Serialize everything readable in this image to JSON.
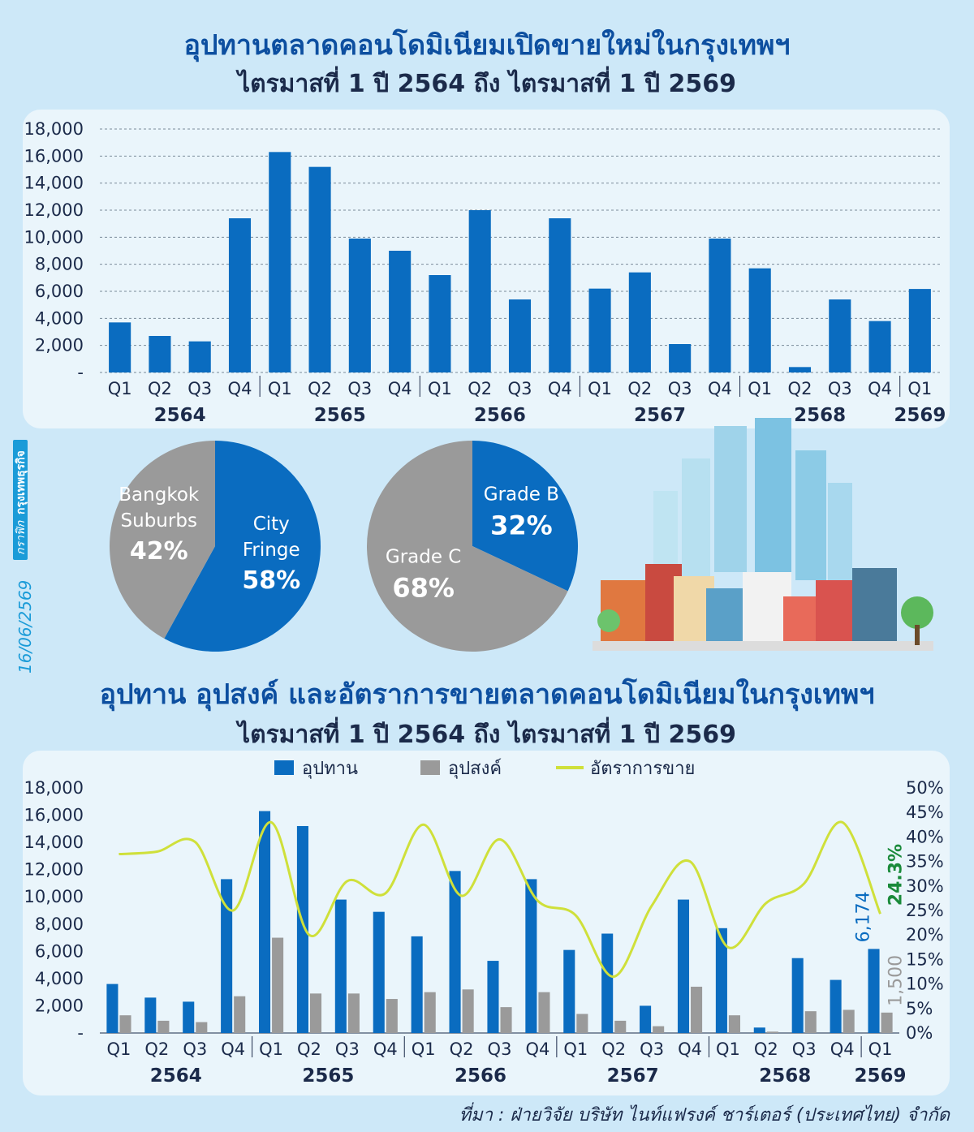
{
  "titles": {
    "top_title": "อุปทานตลาดคอนโดมิเนียมเปิดขายใหม่ในกรุงเทพฯ",
    "top_subtitle": "ไตรมาสที่ 1 ปี 2564 ถึง ไตรมาสที่ 1 ปี 2569",
    "bottom_title": "อุปทาน อุปสงค์ และอัตราการขายตลาดคอนโดมิเนียมในกรุงเทพฯ",
    "bottom_subtitle": "ไตรมาสที่ 1 ปี 2564 ถึง ไตรมาสที่ 1 ปี 2569"
  },
  "side_label": {
    "date": "16/06/2569",
    "prefix": "กราฟิก",
    "brand": "กรุงเทพธุรกิจ"
  },
  "source": "ที่มา : ฝ่ายวิจัย บริษัท ไนท์แฟรงค์ ชาร์เตอร์ (ประเทศไทย) จำกัด",
  "colors": {
    "supply": "#0a6cc0",
    "demand": "#9a9a9a",
    "sales_rate": "#cfe03a",
    "title": "#0d4fa0",
    "annotation_supply": "#0a6cc0",
    "annotation_rate": "#1a8a3a"
  },
  "chart_data": [
    {
      "type": "bar",
      "quarters": [
        "Q1",
        "Q2",
        "Q3",
        "Q4",
        "Q1",
        "Q2",
        "Q3",
        "Q4",
        "Q1",
        "Q2",
        "Q3",
        "Q4",
        "Q1",
        "Q2",
        "Q3",
        "Q4",
        "Q1",
        "Q2",
        "Q3",
        "Q4",
        "Q1"
      ],
      "years": [
        {
          "label": "2564",
          "quarters": 4
        },
        {
          "label": "2565",
          "quarters": 4
        },
        {
          "label": "2566",
          "quarters": 4
        },
        {
          "label": "2567",
          "quarters": 4
        },
        {
          "label": "2568",
          "quarters": 4
        },
        {
          "label": "2569",
          "quarters": 1
        }
      ],
      "values": [
        3700,
        2700,
        2300,
        11400,
        16300,
        15200,
        9900,
        9000,
        7200,
        12000,
        5400,
        11400,
        6200,
        7400,
        2100,
        9900,
        7700,
        400,
        5400,
        3800,
        6174
      ],
      "ylim": [
        0,
        18000
      ],
      "yticks": [
        "-",
        "2,000",
        "4,000",
        "6,000",
        "8,000",
        "10,000",
        "12,000",
        "14,000",
        "16,000",
        "18,000"
      ]
    },
    {
      "type": "pie",
      "slices": [
        {
          "label1": "City",
          "label2": "Fringe",
          "value": 58,
          "text": "58%",
          "color": "#0a6cc0"
        },
        {
          "label1": "Bangkok",
          "label2": "Suburbs",
          "value": 42,
          "text": "42%",
          "color": "#9a9a9a"
        }
      ]
    },
    {
      "type": "pie",
      "slices": [
        {
          "label1": "Grade B",
          "label2": "",
          "value": 32,
          "text": "32%",
          "color": "#0a6cc0"
        },
        {
          "label1": "Grade C",
          "label2": "",
          "value": 68,
          "text": "68%",
          "color": "#9a9a9a"
        }
      ]
    },
    {
      "type": "bar",
      "legend": [
        "อุปทาน",
        "อุปสงค์",
        "อัตราการขาย"
      ],
      "quarters": [
        "Q1",
        "Q2",
        "Q3",
        "Q4",
        "Q1",
        "Q2",
        "Q3",
        "Q4",
        "Q1",
        "Q2",
        "Q3",
        "Q4",
        "Q1",
        "Q2",
        "Q3",
        "Q4",
        "Q1",
        "Q2",
        "Q3",
        "Q4",
        "Q1"
      ],
      "years": [
        {
          "label": "2564",
          "quarters": 4
        },
        {
          "label": "2565",
          "quarters": 4
        },
        {
          "label": "2566",
          "quarters": 4
        },
        {
          "label": "2567",
          "quarters": 4
        },
        {
          "label": "2568",
          "quarters": 4
        },
        {
          "label": "2569",
          "quarters": 1
        }
      ],
      "series": [
        {
          "name": "อุปทาน",
          "values": [
            3600,
            2600,
            2300,
            11300,
            16300,
            15200,
            9800,
            8900,
            7100,
            11900,
            5300,
            11300,
            6100,
            7300,
            2000,
            9800,
            7700,
            400,
            5500,
            3900,
            6174
          ]
        },
        {
          "name": "อุปสงค์",
          "values": [
            1300,
            900,
            800,
            2700,
            7000,
            2900,
            2900,
            2500,
            3000,
            3200,
            1900,
            3000,
            1400,
            900,
            500,
            3400,
            1300,
            100,
            1600,
            1700,
            1500
          ]
        },
        {
          "name": "อัตราการขาย",
          "values": [
            36.5,
            37,
            39,
            25,
            43,
            20,
            31,
            28.5,
            42.5,
            28,
            39.5,
            27,
            24,
            11.5,
            26,
            35,
            17.5,
            26.5,
            30.5,
            43,
            24.3
          ]
        }
      ],
      "ylim": [
        0,
        18000
      ],
      "yticks": [
        "-",
        "2,000",
        "4,000",
        "6,000",
        "8,000",
        "10,000",
        "12,000",
        "14,000",
        "16,000",
        "18,000"
      ],
      "y2lim": [
        0,
        50
      ],
      "y2ticks": [
        "0%",
        "5%",
        "10%",
        "15%",
        "20%",
        "25%",
        "30%",
        "35%",
        "40%",
        "45%",
        "50%"
      ],
      "annotations": {
        "supply_last": "6,174",
        "demand_last": "1,500",
        "rate_last": "24.3%"
      }
    }
  ]
}
